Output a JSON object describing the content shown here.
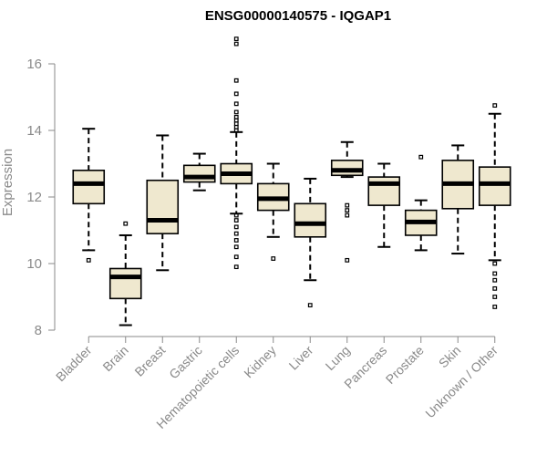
{
  "chart_data": {
    "type": "boxplot",
    "title": "ENSG00000140575 - IQGAP1",
    "xlabel": "",
    "ylabel": "Expression",
    "ylim": [
      8,
      16.8
    ],
    "yticks": [
      8,
      10,
      12,
      14,
      16
    ],
    "grid": false,
    "box_color": "#efe8cf",
    "categories": [
      "Bladder",
      "Brain",
      "Breast",
      "Gastric",
      "Hematopoietic cells",
      "Kidney",
      "Liver",
      "Lung",
      "Pancreas",
      "Prostate",
      "Skin",
      "Unknown / Other"
    ],
    "boxes": [
      {
        "label": "Bladder",
        "whisker_low": 10.4,
        "q1": 11.8,
        "median": 12.4,
        "q3": 12.8,
        "whisker_high": 14.05,
        "outliers": [
          10.1
        ]
      },
      {
        "label": "Brain",
        "whisker_low": 8.15,
        "q1": 8.95,
        "median": 9.6,
        "q3": 9.85,
        "whisker_high": 10.85,
        "outliers": [
          11.2
        ]
      },
      {
        "label": "Breast",
        "whisker_low": 9.8,
        "q1": 10.9,
        "median": 11.3,
        "q3": 12.5,
        "whisker_high": 13.85,
        "outliers": []
      },
      {
        "label": "Gastric",
        "whisker_low": 12.2,
        "q1": 12.45,
        "median": 12.6,
        "q3": 12.95,
        "whisker_high": 13.3,
        "outliers": []
      },
      {
        "label": "Hematopoietic cells",
        "whisker_low": 11.5,
        "q1": 12.4,
        "median": 12.7,
        "q3": 13.0,
        "whisker_high": 13.95,
        "outliers": [
          16.75,
          16.6,
          15.5,
          15.1,
          14.8,
          14.55,
          14.4,
          14.3,
          14.2,
          14.1,
          14.0,
          11.45,
          11.3,
          11.1,
          10.9,
          10.7,
          10.5,
          10.2,
          9.9
        ]
      },
      {
        "label": "Kidney",
        "whisker_low": 10.8,
        "q1": 11.6,
        "median": 11.95,
        "q3": 12.4,
        "whisker_high": 13.0,
        "outliers": [
          10.15
        ]
      },
      {
        "label": "Liver",
        "whisker_low": 9.5,
        "q1": 10.8,
        "median": 11.2,
        "q3": 11.8,
        "whisker_high": 12.55,
        "outliers": [
          8.75
        ]
      },
      {
        "label": "Lung",
        "whisker_low": 12.6,
        "q1": 12.65,
        "median": 12.8,
        "q3": 13.1,
        "whisker_high": 13.65,
        "outliers": [
          11.75,
          11.6,
          11.45,
          10.1
        ]
      },
      {
        "label": "Pancreas",
        "whisker_low": 10.5,
        "q1": 11.75,
        "median": 12.4,
        "q3": 12.6,
        "whisker_high": 13.0,
        "outliers": []
      },
      {
        "label": "Prostate",
        "whisker_low": 10.4,
        "q1": 10.85,
        "median": 11.25,
        "q3": 11.6,
        "whisker_high": 11.9,
        "outliers": [
          13.2
        ]
      },
      {
        "label": "Skin",
        "whisker_low": 10.3,
        "q1": 11.65,
        "median": 12.4,
        "q3": 13.1,
        "whisker_high": 13.55,
        "outliers": []
      },
      {
        "label": "Unknown / Other",
        "whisker_low": 10.1,
        "q1": 11.75,
        "median": 12.4,
        "q3": 12.9,
        "whisker_high": 14.5,
        "outliers": [
          14.75,
          10.0,
          9.7,
          9.5,
          9.25,
          9.0,
          8.7
        ]
      }
    ]
  }
}
